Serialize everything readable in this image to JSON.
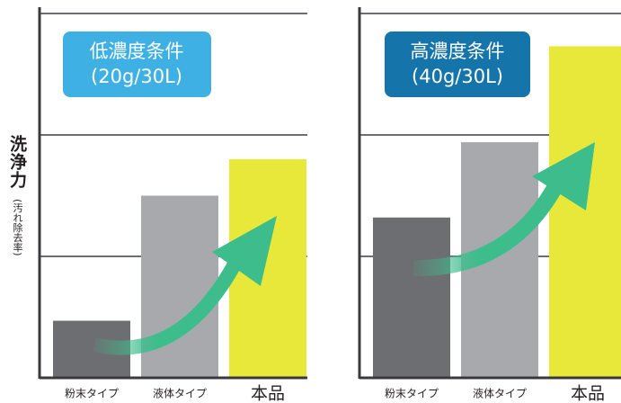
{
  "y_label": "洗浄力",
  "y_label_note": "(汚れ除去率)",
  "chart_data": [
    {
      "type": "bar",
      "title": "低濃度条件",
      "subtitle": "(20g/30L)",
      "categories": [
        "粉末タイプ",
        "液体タイプ",
        "本品"
      ],
      "values": [
        0.47,
        1.5,
        1.8
      ],
      "colors": [
        "#6d6e71",
        "#a7a9ac",
        "#e8e83a"
      ],
      "ylim": [
        0,
        3
      ],
      "yticks": [
        1,
        2,
        3
      ],
      "grid": true,
      "badge_color": "#3fb0e3"
    },
    {
      "type": "bar",
      "title": "高濃度条件",
      "subtitle": "(40g/30L)",
      "categories": [
        "粉末タイプ",
        "液体タイプ",
        "本品"
      ],
      "values": [
        1.32,
        1.94,
        2.73
      ],
      "colors": [
        "#6d6e71",
        "#a7a9ac",
        "#e8e83a"
      ],
      "ylim": [
        0,
        3
      ],
      "yticks": [
        1,
        2,
        3
      ],
      "grid": true,
      "badge_color": "#1574aa"
    }
  ]
}
